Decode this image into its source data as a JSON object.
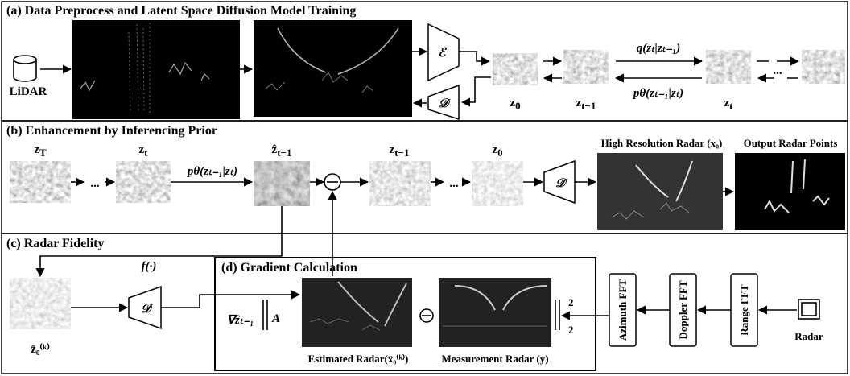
{
  "panel_a": {
    "title": "(a) Data Preprocess and Latent Space Diffusion Model Training",
    "lidar_label": "LiDAR",
    "encoder": "ℰ",
    "decoder": "𝒟",
    "z0": {
      "base": "z",
      "sub": "0"
    },
    "z_prev": {
      "base": "z",
      "sub": "t−1"
    },
    "z_t": {
      "base": "z",
      "sub": "t"
    },
    "forward": "q(zₜ|zₜ₋₁)",
    "reverse": "pθ(zₜ₋₁|zₜ)",
    "ellipsis": "..."
  },
  "panel_b": {
    "title": "(b) Enhancement by Inferencing Prior",
    "z_T": {
      "base": "z",
      "sub": "T"
    },
    "z_t": {
      "base": "z",
      "sub": "t"
    },
    "reverse": "pθ(zₜ₋₁|zₜ)",
    "z_hat": {
      "base": "ẑ",
      "sub": "t−1"
    },
    "z_prev": {
      "base": "z",
      "sub": "t−1"
    },
    "z0": {
      "base": "z",
      "sub": "0"
    },
    "ellipsis_1": "...",
    "ellipsis_2": "...",
    "decoder": "𝒟",
    "high_res_label": "High Resolution Radar (x₀)",
    "output_label": "Output Radar Points"
  },
  "panel_c": {
    "title": "(c) Radar Fidelity",
    "function": "f(·)",
    "z_bar": "z̄₀⁽ᵏ⁾",
    "decoder": "𝒟"
  },
  "panel_d": {
    "title": "(d) Gradient Calculation",
    "gradient": "∇ẑₜ₋₁",
    "operator": "A",
    "estimated_label": "Estimated Radar(x̄₀⁽ᵏ⁾)",
    "measurement_label": "Measurement Radar (y)",
    "norm_subscript": "2",
    "norm_superscript": "2"
  },
  "pipeline": {
    "azimuth": "Azimuth FFT",
    "doppler": "Doppler FFT",
    "range": "Range FFT",
    "radar_label": "Radar"
  }
}
